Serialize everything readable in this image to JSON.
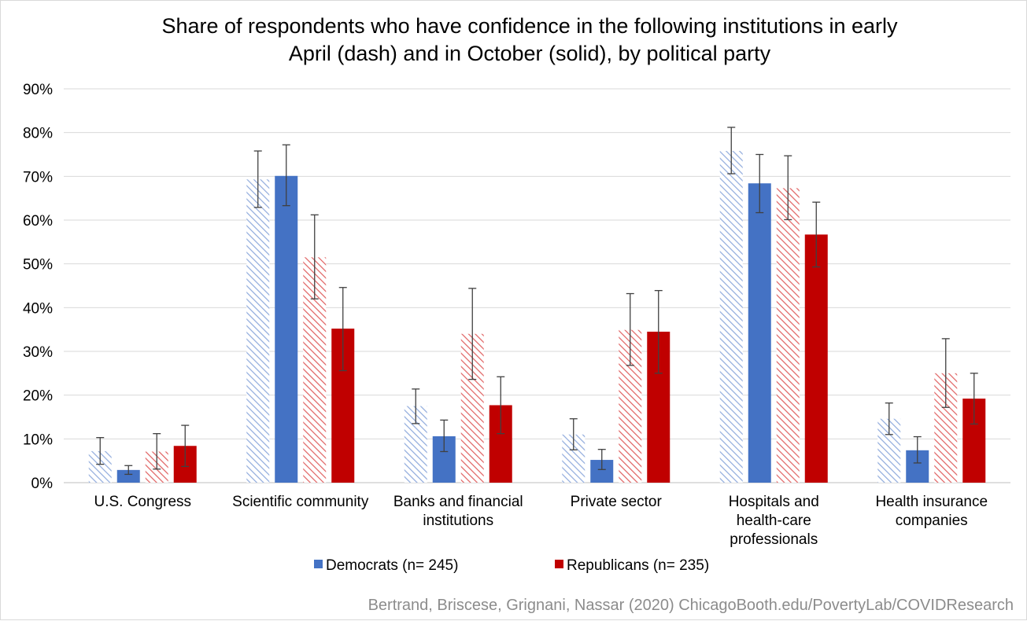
{
  "chart_data": {
    "type": "bar",
    "title": [
      "Share of respondents who have confidence in the following institutions in early",
      "April (dash) and in October (solid), by political party"
    ],
    "categories": [
      [
        "U.S. Congress"
      ],
      [
        "Scientific community"
      ],
      [
        "Banks and financial",
        "institutions"
      ],
      [
        "Private sector"
      ],
      [
        "Hospitals and",
        "health-care",
        "professionals"
      ],
      [
        "Health insurance",
        "companies"
      ]
    ],
    "ylim": [
      0,
      90
    ],
    "yticks": [
      "0%",
      "10%",
      "20%",
      "30%",
      "40%",
      "50%",
      "60%",
      "70%",
      "80%",
      "90%"
    ],
    "grid": true,
    "legend_position": "bottom",
    "series": [
      {
        "party": "Democrats",
        "period": "April",
        "style": "dashed-hatch",
        "color": "#8FAADC",
        "values": [
          7.2,
          69.3,
          17.5,
          11.0,
          75.8,
          14.6
        ],
        "error_low": [
          4.2,
          62.9,
          13.5,
          7.5,
          70.6,
          11.0
        ],
        "error_high": [
          10.3,
          75.8,
          21.4,
          14.6,
          81.2,
          18.2
        ]
      },
      {
        "party": "Democrats",
        "period": "October",
        "style": "solid",
        "color": "#4472C4",
        "values": [
          2.9,
          70.1,
          10.6,
          5.2,
          68.4,
          7.4
        ],
        "error_low": [
          1.9,
          63.3,
          7.1,
          3.0,
          61.7,
          4.5
        ],
        "error_high": [
          3.9,
          77.2,
          14.3,
          7.6,
          75.0,
          10.5
        ]
      },
      {
        "party": "Republicans",
        "period": "April",
        "style": "dashed-hatch",
        "color": "#E06060",
        "values": [
          7.1,
          51.5,
          34.0,
          34.9,
          67.3,
          25.0
        ],
        "error_low": [
          3.1,
          42.0,
          23.6,
          26.8,
          60.1,
          17.2
        ],
        "error_high": [
          11.2,
          61.2,
          44.4,
          43.2,
          74.7,
          32.9
        ]
      },
      {
        "party": "Republicans",
        "period": "October",
        "style": "solid",
        "color": "#C00000",
        "values": [
          8.4,
          35.2,
          17.7,
          34.5,
          56.7,
          19.2
        ],
        "error_low": [
          3.7,
          25.6,
          11.2,
          25.0,
          49.3,
          13.4
        ],
        "error_high": [
          13.1,
          44.6,
          24.2,
          43.9,
          64.1,
          25.0
        ]
      }
    ],
    "legend": [
      {
        "label": "Democrats (n= 245)",
        "color": "#4472C4"
      },
      {
        "label": "Republicans (n= 235)",
        "color": "#C00000"
      }
    ],
    "source": "Bertrand, Briscese, Grignani, Nassar (2020) ChicagoBooth.edu/PovertyLab/COVIDResearch"
  }
}
